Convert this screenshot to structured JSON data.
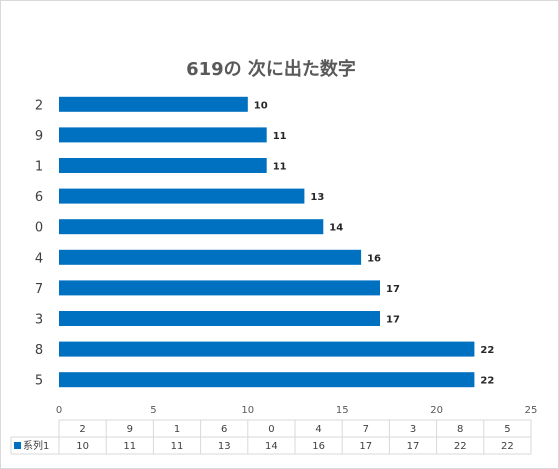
{
  "chart_data": {
    "type": "bar",
    "orientation": "horizontal",
    "title": "619の 次に出た数字",
    "categories": [
      "5",
      "8",
      "3",
      "7",
      "4",
      "0",
      "6",
      "1",
      "9",
      "2"
    ],
    "series": [
      {
        "name": "系列1",
        "values": [
          22,
          22,
          17,
          17,
          16,
          14,
          13,
          11,
          11,
          10
        ],
        "color": "#0070c0"
      }
    ],
    "xlim": [
      0,
      25
    ],
    "xticks": [
      0,
      5,
      10,
      15,
      20,
      25
    ],
    "grid": false,
    "data_table": true,
    "legend": "in-data-table"
  }
}
